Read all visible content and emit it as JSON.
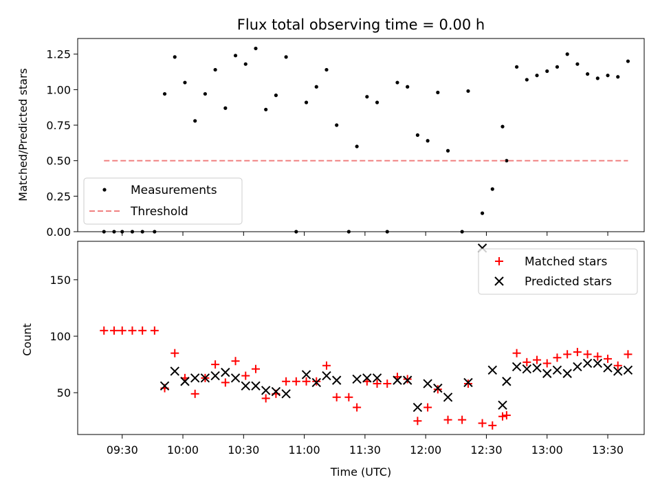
{
  "chart_data": [
    {
      "type": "scatter",
      "title": "Flux total observing time = 0.00 h",
      "xlabel": "",
      "ylabel": "Matched/Predicted stars",
      "xlim": [
        "09:08",
        "13:48"
      ],
      "ylim": [
        0,
        1.36
      ],
      "yticks": [
        0.0,
        0.25,
        0.5,
        0.75,
        1.0,
        1.25
      ],
      "ytick_labels": [
        "0.00",
        "0.25",
        "0.50",
        "0.75",
        "1.00",
        "1.25"
      ],
      "x_tick_times": [
        "09:30",
        "10:00",
        "10:30",
        "11:00",
        "11:30",
        "12:00",
        "12:30",
        "13:00",
        "13:30"
      ],
      "legend": {
        "position": "lower-left",
        "entries": [
          "Measurements",
          "Threshold"
        ]
      },
      "series": [
        {
          "name": "Measurements",
          "style": "dot",
          "color": "#000000",
          "points": [
            [
              "09:21",
              0.0
            ],
            [
              "09:26",
              0.0
            ],
            [
              "09:30",
              0.0
            ],
            [
              "09:35",
              0.0
            ],
            [
              "09:40",
              0.0
            ],
            [
              "09:46",
              0.0
            ],
            [
              "09:51",
              0.97
            ],
            [
              "09:56",
              1.23
            ],
            [
              "10:01",
              1.05
            ],
            [
              "10:06",
              0.78
            ],
            [
              "10:11",
              0.97
            ],
            [
              "10:16",
              1.14
            ],
            [
              "10:21",
              0.87
            ],
            [
              "10:26",
              1.24
            ],
            [
              "10:31",
              1.18
            ],
            [
              "10:36",
              1.29
            ],
            [
              "10:41",
              0.86
            ],
            [
              "10:46",
              0.96
            ],
            [
              "10:51",
              1.23
            ],
            [
              "10:56",
              0.0
            ],
            [
              "11:01",
              0.91
            ],
            [
              "11:06",
              1.02
            ],
            [
              "11:11",
              1.14
            ],
            [
              "11:16",
              0.75
            ],
            [
              "11:22",
              0.0
            ],
            [
              "11:26",
              0.6
            ],
            [
              "11:31",
              0.95
            ],
            [
              "11:36",
              0.91
            ],
            [
              "11:41",
              0.0
            ],
            [
              "11:46",
              1.05
            ],
            [
              "11:51",
              1.02
            ],
            [
              "11:56",
              0.68
            ],
            [
              "12:01",
              0.64
            ],
            [
              "12:06",
              0.98
            ],
            [
              "12:11",
              0.57
            ],
            [
              "12:18",
              0.0
            ],
            [
              "12:21",
              0.99
            ],
            [
              "12:28",
              0.13
            ],
            [
              "12:33",
              0.3
            ],
            [
              "12:38",
              0.74
            ],
            [
              "12:40",
              0.5
            ],
            [
              "12:45",
              1.16
            ],
            [
              "12:50",
              1.07
            ],
            [
              "12:55",
              1.1
            ],
            [
              "13:00",
              1.13
            ],
            [
              "13:05",
              1.16
            ],
            [
              "13:10",
              1.25
            ],
            [
              "13:15",
              1.18
            ],
            [
              "13:20",
              1.11
            ],
            [
              "13:25",
              1.08
            ],
            [
              "13:30",
              1.1
            ],
            [
              "13:35",
              1.09
            ],
            [
              "13:40",
              1.2
            ]
          ]
        },
        {
          "name": "Threshold",
          "style": "dashed-line",
          "color": "#f08080",
          "points": [
            [
              "09:21",
              0.5
            ],
            [
              "13:40",
              0.5
            ]
          ]
        }
      ]
    },
    {
      "type": "scatter",
      "title": "",
      "xlabel": "Time (UTC)",
      "ylabel": "Count",
      "xlim": [
        "09:08",
        "13:48"
      ],
      "ylim": [
        13,
        184
      ],
      "yticks": [
        50,
        100,
        150
      ],
      "ytick_labels": [
        "50",
        "100",
        "150"
      ],
      "x_tick_times": [
        "09:30",
        "10:00",
        "10:30",
        "11:00",
        "11:30",
        "12:00",
        "12:30",
        "13:00",
        "13:30"
      ],
      "x_tick_labels": [
        "09:30",
        "10:00",
        "10:30",
        "11:00",
        "11:30",
        "12:00",
        "12:30",
        "13:00",
        "13:30"
      ],
      "legend": {
        "position": "upper-right",
        "entries": [
          "Matched stars",
          "Predicted stars"
        ]
      },
      "series": [
        {
          "name": "Matched stars",
          "marker": "plus",
          "color": "#ff0000",
          "points": [
            [
              "09:21",
              105
            ],
            [
              "09:26",
              105
            ],
            [
              "09:30",
              105
            ],
            [
              "09:35",
              105
            ],
            [
              "09:40",
              105
            ],
            [
              "09:46",
              105
            ],
            [
              "09:51",
              54
            ],
            [
              "09:56",
              85
            ],
            [
              "10:01",
              63
            ],
            [
              "10:06",
              49
            ],
            [
              "10:11",
              63
            ],
            [
              "10:16",
              75
            ],
            [
              "10:21",
              59
            ],
            [
              "10:26",
              78
            ],
            [
              "10:31",
              65
            ],
            [
              "10:36",
              71
            ],
            [
              "10:41",
              45
            ],
            [
              "10:46",
              49
            ],
            [
              "10:51",
              60
            ],
            [
              "10:56",
              60
            ],
            [
              "11:01",
              60
            ],
            [
              "11:06",
              60
            ],
            [
              "11:11",
              74
            ],
            [
              "11:16",
              46
            ],
            [
              "11:22",
              46
            ],
            [
              "11:26",
              37
            ],
            [
              "11:31",
              60
            ],
            [
              "11:36",
              58
            ],
            [
              "11:41",
              58
            ],
            [
              "11:46",
              64
            ],
            [
              "11:51",
              62
            ],
            [
              "11:56",
              25
            ],
            [
              "12:01",
              37
            ],
            [
              "12:06",
              53
            ],
            [
              "12:11",
              26
            ],
            [
              "12:18",
              26
            ],
            [
              "12:21",
              58
            ],
            [
              "12:28",
              23
            ],
            [
              "12:33",
              21
            ],
            [
              "12:38",
              29
            ],
            [
              "12:40",
              30
            ],
            [
              "12:45",
              85
            ],
            [
              "12:50",
              77
            ],
            [
              "12:55",
              79
            ],
            [
              "13:00",
              76
            ],
            [
              "13:05",
              81
            ],
            [
              "13:10",
              84
            ],
            [
              "13:15",
              86
            ],
            [
              "13:20",
              84
            ],
            [
              "13:25",
              82
            ],
            [
              "13:30",
              80
            ],
            [
              "13:35",
              74
            ],
            [
              "13:40",
              84
            ]
          ]
        },
        {
          "name": "Predicted stars",
          "marker": "x",
          "color": "#000000",
          "points": [
            [
              "09:51",
              56
            ],
            [
              "09:56",
              69
            ],
            [
              "10:01",
              60
            ],
            [
              "10:06",
              63
            ],
            [
              "10:11",
              63
            ],
            [
              "10:16",
              65
            ],
            [
              "10:21",
              68
            ],
            [
              "10:26",
              63
            ],
            [
              "10:31",
              56
            ],
            [
              "10:36",
              56
            ],
            [
              "10:41",
              52
            ],
            [
              "10:46",
              51
            ],
            [
              "10:51",
              49
            ],
            [
              "11:01",
              66
            ],
            [
              "11:06",
              59
            ],
            [
              "11:11",
              65
            ],
            [
              "11:16",
              61
            ],
            [
              "11:26",
              62
            ],
            [
              "11:31",
              63
            ],
            [
              "11:36",
              63
            ],
            [
              "11:46",
              61
            ],
            [
              "11:51",
              61
            ],
            [
              "11:56",
              37
            ],
            [
              "12:01",
              58
            ],
            [
              "12:06",
              54
            ],
            [
              "12:11",
              46
            ],
            [
              "12:21",
              59
            ],
            [
              "12:28",
              178
            ],
            [
              "12:33",
              70
            ],
            [
              "12:38",
              39
            ],
            [
              "12:40",
              60
            ],
            [
              "12:45",
              73
            ],
            [
              "12:50",
              71
            ],
            [
              "12:55",
              72
            ],
            [
              "13:00",
              67
            ],
            [
              "13:05",
              70
            ],
            [
              "13:10",
              67
            ],
            [
              "13:15",
              73
            ],
            [
              "13:20",
              76
            ],
            [
              "13:25",
              76
            ],
            [
              "13:30",
              72
            ],
            [
              "13:35",
              69
            ],
            [
              "13:40",
              70
            ]
          ]
        }
      ]
    }
  ]
}
